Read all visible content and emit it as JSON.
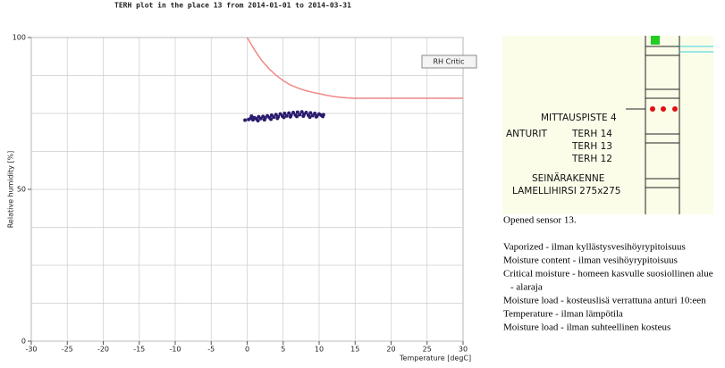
{
  "chart_data": {
    "type": "scatter",
    "title": "TERH plot in the place 13 from 2014-01-01 to 2014-03-31",
    "x_label": "Temperature [degC]",
    "y_label": "Relative humidity [%]",
    "xlim": [
      -30,
      30
    ],
    "xticks": [
      -30,
      -25,
      -20,
      -15,
      -10,
      -5,
      0,
      5,
      10,
      15,
      20,
      25,
      30
    ],
    "ylim": [
      0,
      100
    ],
    "yticks": [
      0,
      50,
      100
    ],
    "ygrid": [
      0,
      12.5,
      25,
      37.5,
      50,
      62.5,
      75,
      87.5,
      100
    ],
    "grid": true,
    "color": "#2b1b6e",
    "x": [
      -0.3,
      0.2,
      0.5,
      0.8,
      1.0,
      1.3,
      1.6,
      1.9,
      2.2,
      2.5,
      2.8,
      3.1,
      3.4,
      3.7,
      4.0,
      4.3,
      4.6,
      4.9,
      5.2,
      5.5,
      5.8,
      6.1,
      6.4,
      6.7,
      7.0,
      7.3,
      7.6,
      7.9,
      8.2,
      8.5,
      8.8,
      9.1,
      9.4,
      9.7,
      10.0,
      10.3,
      10.6,
      0.6,
      1.5,
      2.4,
      3.3,
      4.2,
      5.1,
      6.0,
      6.9,
      7.8,
      8.7,
      9.6,
      10.5
    ],
    "y": [
      72.8,
      73.0,
      73.4,
      72.9,
      73.6,
      73.2,
      73.9,
      73.3,
      74.0,
      73.5,
      74.2,
      73.6,
      74.4,
      73.8,
      74.6,
      73.9,
      74.8,
      74.1,
      75.0,
      74.2,
      75.1,
      74.4,
      75.3,
      74.5,
      75.4,
      74.6,
      75.5,
      74.7,
      75.3,
      74.4,
      75.2,
      74.3,
      75.0,
      74.2,
      74.8,
      74.4,
      74.6,
      74.1,
      72.6,
      72.9,
      73.1,
      73.4,
      73.7,
      73.9,
      74.0,
      74.1,
      73.8,
      73.9,
      74.0
    ],
    "critical": {
      "name": "RH Critic",
      "color": "#f08888",
      "x": [
        0,
        1,
        2,
        3,
        4,
        5,
        6,
        7,
        8,
        9,
        10,
        11,
        12,
        13,
        14,
        15,
        20,
        25,
        30
      ],
      "y": [
        100,
        96,
        92.5,
        89.8,
        87.6,
        85.8,
        84.4,
        83.4,
        82.6,
        82,
        81.5,
        81,
        80.6,
        80.3,
        80.1,
        80,
        80,
        80,
        80
      ]
    }
  },
  "diagram": {
    "labels": [
      "MITTAUSPISTE  4",
      "ANTURIT",
      "TERH  14",
      "TERH  13",
      "TERH  12",
      "SEINÄRAKENNE",
      "LAMELLIHIRSI  275x275"
    ]
  },
  "info": {
    "status": "Opened sensor 13.",
    "lines": [
      "Vaporized - ilman kyllästysvesihöyrypitoisuus",
      "Moisture content - ilman vesihöyrypitoisuus",
      "Critical moisture - homeen kasvulle suosiollinen alue",
      "- alaraja",
      "Moisture load - kosteuslisä verrattuna anturi 10:een",
      "Temperature - ilman lämpötila",
      "Moisture load - ilman suhteellinen kosteus"
    ]
  }
}
